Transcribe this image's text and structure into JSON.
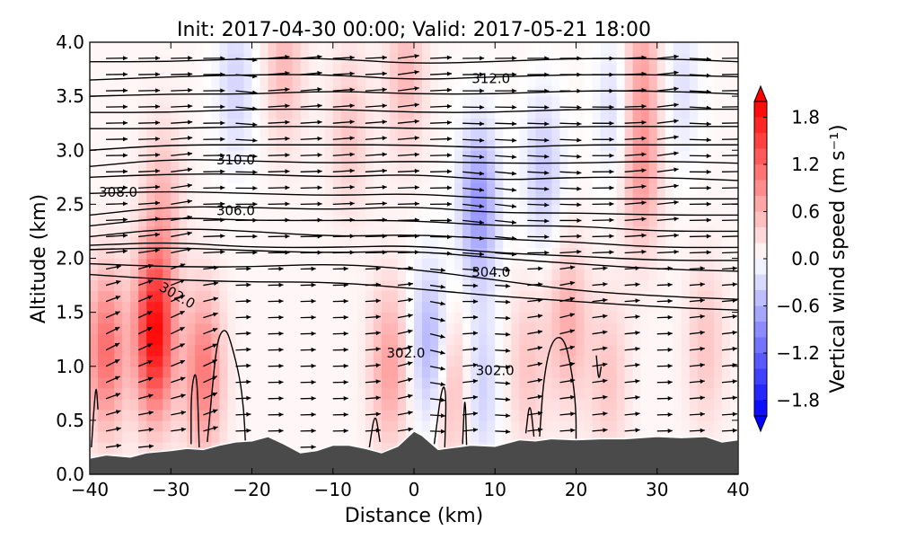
{
  "chart_data": {
    "type": "heatmap",
    "title": "Init: 2017-04-30 00:00; Valid: 2017-05-21 18:00",
    "xlabel": "Distance (km)",
    "ylabel": "Altitude (km)",
    "xlim": [
      -40,
      40
    ],
    "ylim": [
      0.0,
      4.0
    ],
    "x_ticks": [
      "−40",
      "−30",
      "−20",
      "−10",
      "0",
      "10",
      "20",
      "30",
      "40"
    ],
    "x_tick_values": [
      -40,
      -30,
      -20,
      -10,
      0,
      10,
      20,
      30,
      40
    ],
    "y_ticks": [
      "0.0",
      "0.5",
      "1.0",
      "1.5",
      "2.0",
      "2.5",
      "3.0",
      "3.5",
      "4.0"
    ],
    "y_tick_values": [
      0.0,
      0.5,
      1.0,
      1.5,
      2.0,
      2.5,
      3.0,
      3.5,
      4.0
    ],
    "colorbar": {
      "label": "Vertical wind speed (m s⁻¹)",
      "range": [
        -2.0,
        2.0
      ],
      "tick_labels": [
        "1.8",
        "1.2",
        "0.6",
        "0.0",
        "−0.6",
        "−1.2",
        "−1.8"
      ],
      "tick_values": [
        1.8,
        1.2,
        0.6,
        0.0,
        -0.6,
        -1.2,
        -1.8
      ],
      "levels": 20,
      "colors": {
        "negative": "#0000ff",
        "neutral": "#ffffff",
        "positive": "#ff0000"
      }
    },
    "terrain": {
      "color": "#4a4a4a",
      "x": [
        -40,
        -38,
        -35,
        -33,
        -30,
        -28,
        -26,
        -24,
        -22,
        -20,
        -18,
        -16,
        -14,
        -12,
        -10,
        -8,
        -6,
        -4,
        -2,
        0,
        1,
        3,
        5,
        7,
        10,
        13,
        15,
        17,
        20,
        23,
        26,
        30,
        33,
        36,
        38,
        40
      ],
      "y": [
        0.15,
        0.18,
        0.16,
        0.2,
        0.22,
        0.24,
        0.23,
        0.27,
        0.3,
        0.31,
        0.35,
        0.28,
        0.2,
        0.22,
        0.27,
        0.27,
        0.24,
        0.2,
        0.26,
        0.4,
        0.36,
        0.23,
        0.25,
        0.27,
        0.26,
        0.32,
        0.31,
        0.33,
        0.32,
        0.33,
        0.33,
        0.35,
        0.34,
        0.35,
        0.3,
        0.32
      ]
    },
    "vertical_wind_anomalies": [
      {
        "x": -38,
        "y": 1.15,
        "value": 1.1
      },
      {
        "x": -32,
        "y": 1.3,
        "value": 1.9
      },
      {
        "x": -31,
        "y": 2.5,
        "value": 0.5
      },
      {
        "x": -26,
        "y": 0.95,
        "value": 1.0
      },
      {
        "x": -22,
        "y": 3.6,
        "value": -0.4
      },
      {
        "x": -16,
        "y": 3.8,
        "value": 0.5
      },
      {
        "x": -8,
        "y": 3.2,
        "value": 0.4
      },
      {
        "x": -3,
        "y": 1.0,
        "value": 0.7
      },
      {
        "x": -1,
        "y": 3.7,
        "value": 0.5
      },
      {
        "x": 2,
        "y": 1.2,
        "value": -0.7
      },
      {
        "x": 5,
        "y": 0.8,
        "value": 0.6
      },
      {
        "x": 8,
        "y": 2.5,
        "value": -0.9
      },
      {
        "x": 8,
        "y": 0.8,
        "value": -0.5
      },
      {
        "x": 14,
        "y": 1.0,
        "value": 0.4
      },
      {
        "x": 16,
        "y": 2.8,
        "value": -0.5
      },
      {
        "x": 19,
        "y": 1.4,
        "value": 0.6
      },
      {
        "x": 24,
        "y": 0.9,
        "value": 0.4
      },
      {
        "x": 25,
        "y": 3.4,
        "value": -0.4
      },
      {
        "x": 28,
        "y": 2.8,
        "value": 0.7
      },
      {
        "x": 28,
        "y": 3.8,
        "value": 0.6
      },
      {
        "x": 33,
        "y": 3.6,
        "value": -0.3
      },
      {
        "x": 36,
        "y": 1.2,
        "value": 0.4
      }
    ],
    "isentropes": [
      {
        "x": [
          -40,
          -30,
          -20,
          -10,
          0,
          10,
          20,
          30,
          40
        ],
        "y": [
          2.08,
          2.1,
          2.07,
          2.05,
          2.07,
          2.0,
          1.95,
          1.9,
          1.88
        ]
      },
      {
        "x": [
          -40,
          -30,
          -20,
          -10,
          0,
          10,
          20,
          30,
          40
        ],
        "y": [
          2.12,
          2.15,
          2.1,
          2.1,
          2.12,
          2.05,
          2.02,
          1.98,
          1.98
        ]
      },
      {
        "x": [
          -40,
          -30,
          -20,
          -10,
          0,
          10,
          20,
          30,
          40
        ],
        "y": [
          2.2,
          2.28,
          2.25,
          2.2,
          2.22,
          2.18,
          2.15,
          2.1,
          2.1
        ]
      },
      {
        "x": [
          -40,
          -30,
          -20,
          -10,
          0,
          10,
          20,
          30,
          40
        ],
        "y": [
          2.3,
          2.38,
          2.35,
          2.35,
          2.35,
          2.3,
          2.3,
          2.25,
          2.25
        ]
      },
      {
        "x": [
          -40,
          -30,
          -20,
          -10,
          0,
          10,
          20,
          30,
          40
        ],
        "y": [
          2.4,
          2.48,
          2.47,
          2.45,
          2.48,
          2.42,
          2.42,
          2.4,
          2.4
        ]
      },
      {
        "x": [
          -40,
          -30,
          -20,
          -10,
          0,
          10,
          20,
          30,
          40
        ],
        "y": [
          2.6,
          2.62,
          2.6,
          2.58,
          2.6,
          2.55,
          2.55,
          2.55,
          2.55
        ]
      },
      {
        "x": [
          -40,
          -30,
          -20,
          -10,
          0,
          10,
          20,
          30,
          40
        ],
        "y": [
          2.75,
          2.78,
          2.78,
          2.75,
          2.78,
          2.72,
          2.75,
          2.75,
          2.72
        ]
      },
      {
        "x": [
          -40,
          -30,
          -20,
          -10,
          0,
          10,
          20,
          30,
          40
        ],
        "y": [
          2.85,
          2.92,
          2.9,
          2.88,
          2.9,
          2.88,
          2.88,
          2.9,
          2.88
        ]
      },
      {
        "x": [
          -40,
          -30,
          -20,
          -10,
          0,
          10,
          20,
          30,
          40
        ],
        "y": [
          3.0,
          3.05,
          3.05,
          3.05,
          3.05,
          3.02,
          3.05,
          3.05,
          3.05
        ]
      },
      {
        "x": [
          -40,
          -30,
          -20,
          -10,
          0,
          10,
          20,
          30,
          40
        ],
        "y": [
          3.2,
          3.2,
          3.22,
          3.22,
          3.2,
          3.2,
          3.22,
          3.22,
          3.22
        ]
      },
      {
        "x": [
          -40,
          -30,
          -20,
          -10,
          0,
          10,
          20,
          30,
          40
        ],
        "y": [
          3.35,
          3.35,
          3.38,
          3.38,
          3.35,
          3.35,
          3.38,
          3.38,
          3.38
        ]
      },
      {
        "x": [
          -40,
          -30,
          -20,
          -10,
          0,
          10,
          20,
          30,
          40
        ],
        "y": [
          3.5,
          3.52,
          3.52,
          3.55,
          3.52,
          3.52,
          3.55,
          3.55,
          3.52
        ]
      },
      {
        "x": [
          -40,
          -30,
          -20,
          -10,
          0,
          10,
          20,
          30,
          40
        ],
        "y": [
          3.65,
          3.68,
          3.7,
          3.7,
          3.65,
          3.68,
          3.7,
          3.7,
          3.68
        ]
      },
      {
        "x": [
          -40,
          -30,
          -20,
          -10,
          0,
          10,
          20,
          30,
          40
        ],
        "y": [
          3.82,
          3.82,
          3.85,
          3.85,
          3.8,
          3.82,
          3.85,
          3.85,
          3.82
        ]
      },
      {
        "x": [
          -40,
          -30,
          -20,
          -10,
          0,
          10,
          20,
          30,
          40
        ],
        "y": [
          1.85,
          1.8,
          1.78,
          1.78,
          1.72,
          1.65,
          1.6,
          1.55,
          1.52
        ]
      },
      {
        "x": [
          -40,
          -30,
          -20,
          -10,
          0,
          10,
          20,
          30,
          40
        ],
        "y": [
          1.95,
          1.92,
          1.92,
          1.95,
          1.9,
          1.8,
          1.7,
          1.65,
          1.62
        ]
      },
      {
        "x": [
          -39.8,
          -39.5,
          -39.2,
          -39.0
        ],
        "y": [
          0.25,
          0.6,
          0.85,
          0.6
        ]
      },
      {
        "x": [
          -25.5,
          -25.0,
          -24.5,
          -24.0,
          -23.2,
          -22.5,
          -21.5,
          -21.0,
          -20.8
        ],
        "y": [
          0.3,
          0.7,
          1.1,
          1.3,
          1.35,
          1.2,
          0.9,
          0.6,
          0.3
        ]
      },
      {
        "x": [
          -27.5,
          -27.5,
          -26.8,
          -26.5
        ],
        "y": [
          0.28,
          0.8,
          1.0,
          0.25
        ]
      },
      {
        "x": [
          -5.5,
          -4.8,
          -4.2
        ],
        "y": [
          0.25,
          0.6,
          0.3
        ]
      },
      {
        "x": [
          2.5,
          3.5,
          4.0,
          3.8
        ],
        "y": [
          0.28,
          0.85,
          0.75,
          0.25
        ]
      },
      {
        "x": [
          6.0,
          6.3,
          6.5
        ],
        "y": [
          0.28,
          0.8,
          0.25
        ]
      },
      {
        "x": [
          15.5,
          16.0,
          17.0,
          18.5,
          19.5,
          20.0,
          20.0
        ],
        "y": [
          0.35,
          0.9,
          1.25,
          1.28,
          0.95,
          0.6,
          0.33
        ]
      },
      {
        "x": [
          13.8,
          14.3,
          14.8
        ],
        "y": [
          0.38,
          0.7,
          0.35
        ]
      },
      {
        "x": [
          22.5,
          22.8,
          23.1
        ],
        "y": [
          1.1,
          0.85,
          1.0
        ]
      }
    ],
    "contour_labels": [
      {
        "text": "312.0",
        "x": 9.5,
        "y": 3.62
      },
      {
        "text": "310.0",
        "x": -22.0,
        "y": 2.87
      },
      {
        "text": "308.0",
        "x": -36.5,
        "y": 2.57
      },
      {
        "text": "306.0",
        "x": -22.0,
        "y": 2.4
      },
      {
        "text": "304.0",
        "x": 9.5,
        "y": 1.83
      },
      {
        "text": "302.0",
        "x": -29.5,
        "y": 1.62,
        "rotate": 30
      },
      {
        "text": "302.0",
        "x": -1.0,
        "y": 1.08
      },
      {
        "text": "302.0",
        "x": 10.0,
        "y": 0.92
      }
    ],
    "wind_vectors": {
      "u_mean": 1.0,
      "w_scale": 0.35
    }
  }
}
